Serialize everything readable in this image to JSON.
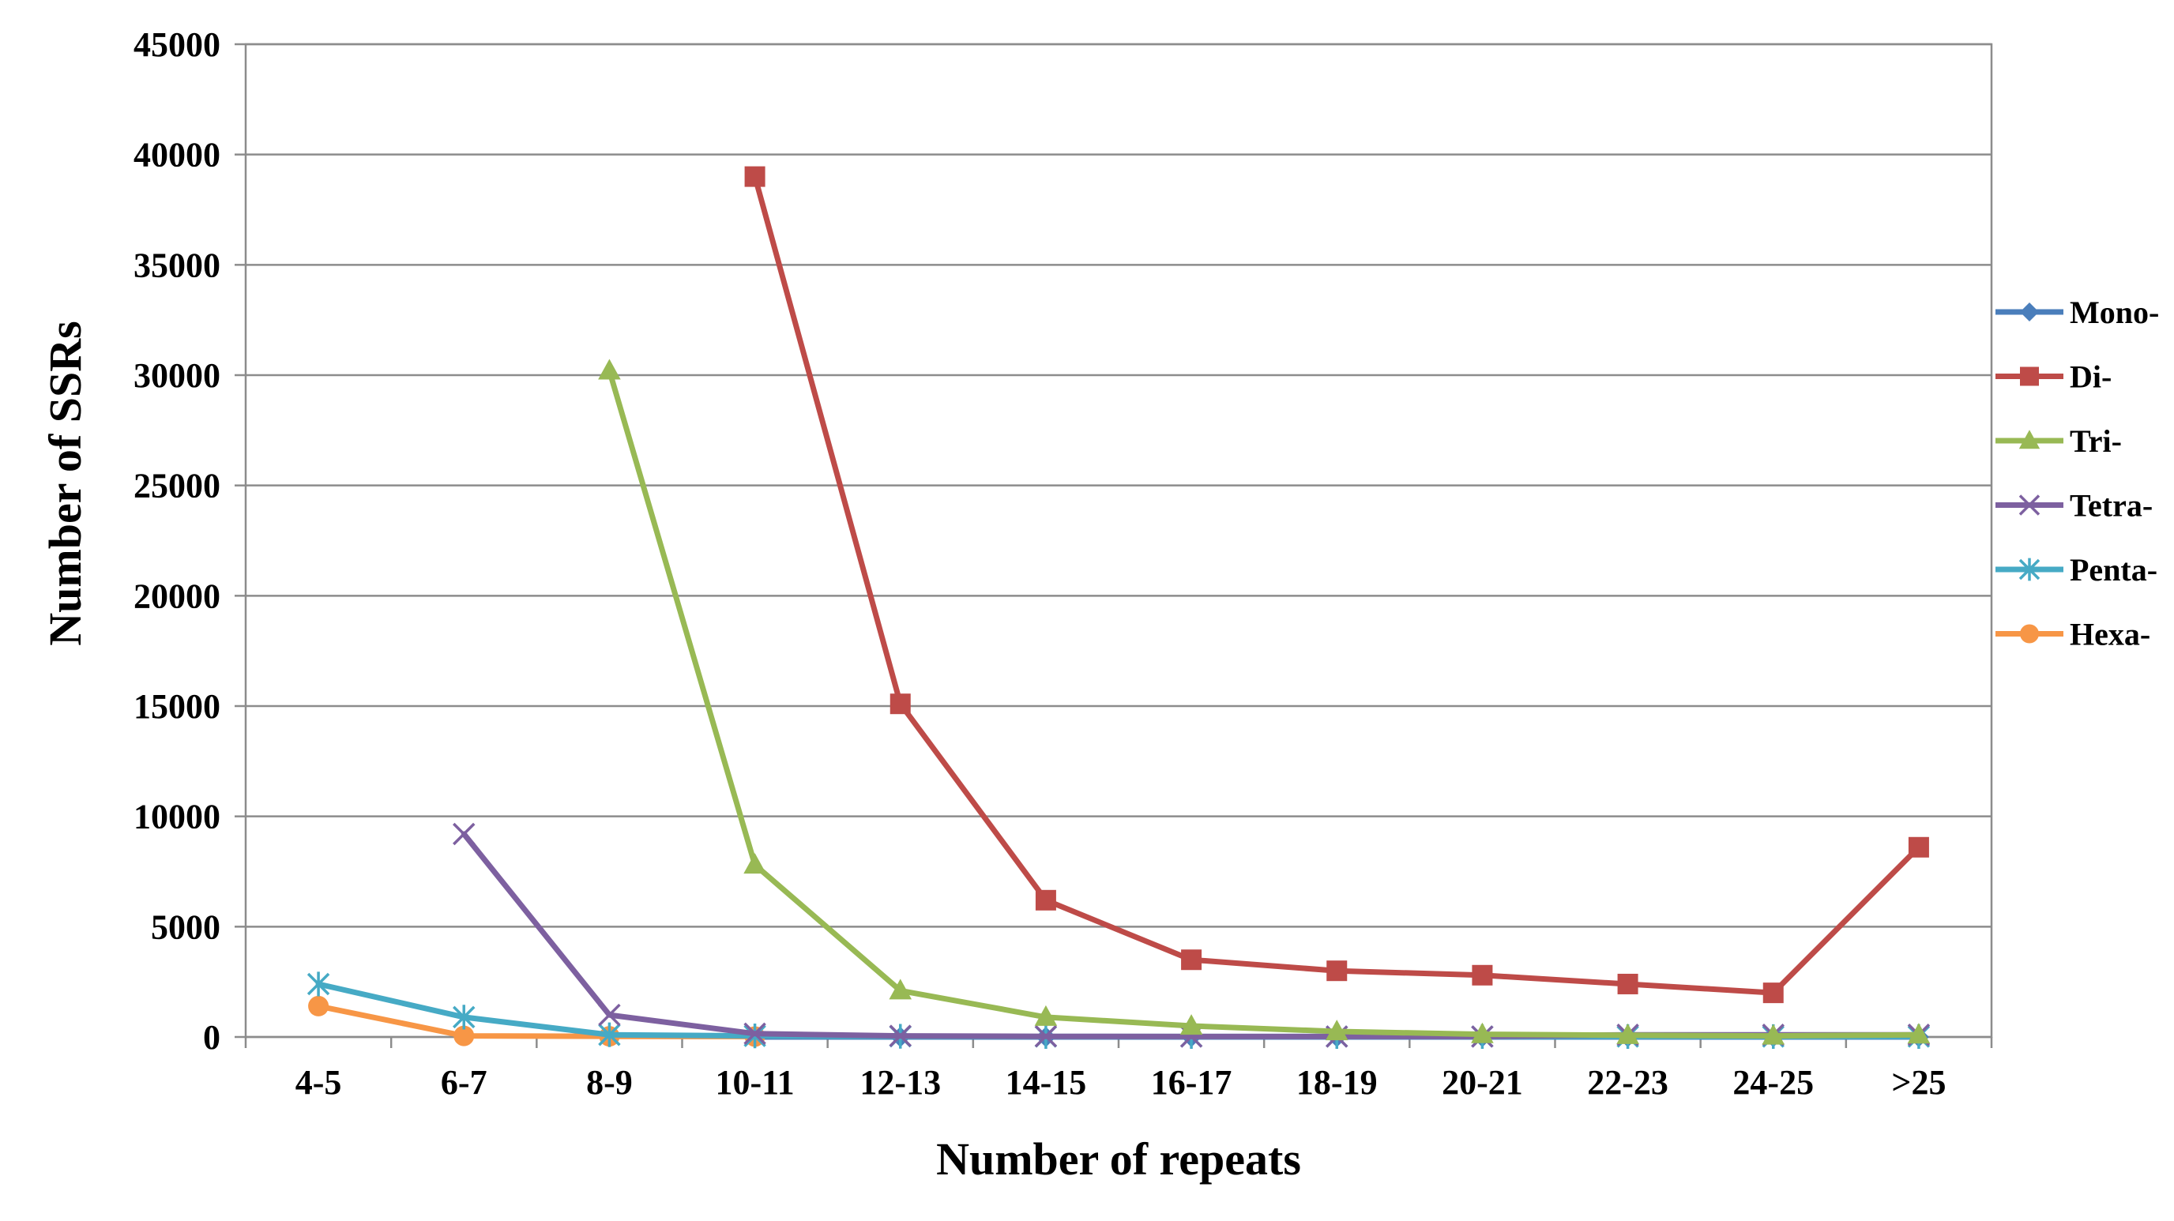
{
  "chart_data": {
    "type": "line",
    "title": "",
    "xlabel": "Number of repeats",
    "ylabel": "Number of SSRs",
    "categories": [
      "4-5",
      "6-7",
      "8-9",
      "10-11",
      "12-13",
      "14-15",
      "16-17",
      "18-19",
      "20-21",
      "22-23",
      "24-25",
      ">25"
    ],
    "ylim": [
      0,
      45000
    ],
    "yticks": [
      0,
      5000,
      10000,
      15000,
      20000,
      25000,
      30000,
      35000,
      40000,
      45000
    ],
    "grid": "horizontal",
    "legend_position": "right",
    "series": [
      {
        "name": "Mono-",
        "color": "#4a7ebb",
        "marker": "diamond",
        "values": [
          null,
          null,
          null,
          0,
          0,
          0,
          0,
          0,
          0,
          0,
          0,
          0
        ]
      },
      {
        "name": "Di-",
        "color": "#be4b48",
        "marker": "square",
        "values": [
          null,
          null,
          null,
          39000,
          15100,
          6200,
          3500,
          3000,
          2800,
          2400,
          2000,
          8600
        ]
      },
      {
        "name": "Tri-",
        "color": "#98b954",
        "marker": "triangle",
        "values": [
          null,
          null,
          30200,
          7800,
          2100,
          900,
          500,
          250,
          120,
          80,
          50,
          100
        ]
      },
      {
        "name": "Tetra-",
        "color": "#7d60a0",
        "marker": "x",
        "values": [
          null,
          9200,
          1000,
          150,
          50,
          30,
          20,
          20,
          20,
          100,
          100,
          100
        ]
      },
      {
        "name": "Penta-",
        "color": "#46aac5",
        "marker": "star",
        "values": [
          2400,
          900,
          100,
          50,
          30,
          20,
          20,
          20,
          20,
          20,
          20,
          20
        ]
      },
      {
        "name": "Hexa-",
        "color": "#f79646",
        "marker": "circle",
        "values": [
          1400,
          50,
          30,
          20,
          null,
          null,
          null,
          null,
          null,
          null,
          null,
          null
        ]
      }
    ]
  }
}
